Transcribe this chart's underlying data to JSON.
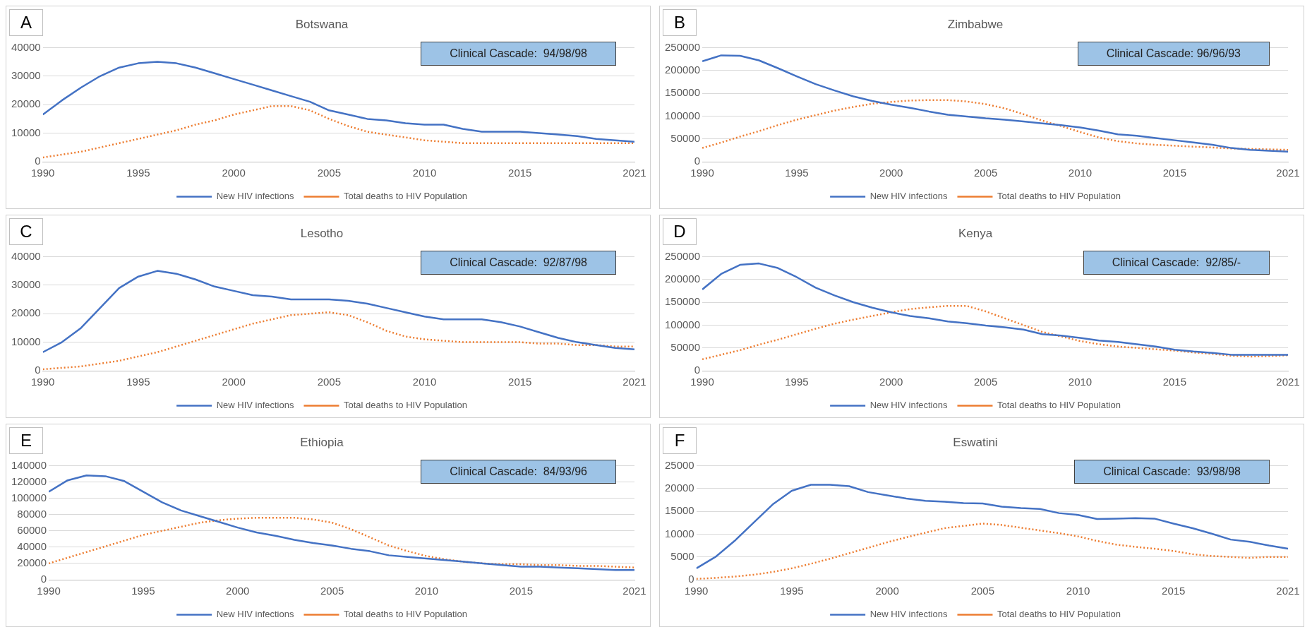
{
  "chart_data": [
    {
      "type": "line",
      "title": "Botswana",
      "annotations": [
        "A",
        "Clinical Cascade:  94/98/98"
      ],
      "x": [
        1990,
        1991,
        1992,
        1993,
        1994,
        1995,
        1996,
        1997,
        1998,
        1999,
        2000,
        2001,
        2002,
        2003,
        2004,
        2005,
        2006,
        2007,
        2008,
        2009,
        2010,
        2011,
        2012,
        2013,
        2014,
        2015,
        2016,
        2017,
        2018,
        2019,
        2020,
        2021
      ],
      "xlim": [
        1990,
        2021
      ],
      "xticks": [
        1990,
        1995,
        2000,
        2005,
        2010,
        2015,
        2021
      ],
      "ylim": [
        0,
        40000
      ],
      "yticks": [
        0,
        10000,
        20000,
        30000,
        40000
      ],
      "grid": "y",
      "legend": "bottom",
      "marker": "none",
      "series": [
        {
          "name": "New HIV infections",
          "color": "#4472c4",
          "line_style": "solid",
          "values": [
            16500,
            21500,
            26000,
            30000,
            33000,
            34500,
            35000,
            34500,
            33000,
            31000,
            29000,
            27000,
            25000,
            23000,
            21000,
            18000,
            16500,
            15000,
            14500,
            13500,
            13000,
            13000,
            11500,
            10500,
            10500,
            10500,
            10000,
            9500,
            9000,
            8000,
            7500,
            7000
          ]
        },
        {
          "name": "Total deaths to HIV Population",
          "color": "#ed7d31",
          "line_style": "dotted",
          "values": [
            1500,
            2500,
            3500,
            5000,
            6500,
            8000,
            9500,
            11000,
            13000,
            14500,
            16500,
            18000,
            19500,
            19500,
            18000,
            15000,
            12500,
            10500,
            9500,
            8500,
            7500,
            7000,
            6500,
            6500,
            6500,
            6500,
            6500,
            6500,
            6500,
            6500,
            6500,
            6500
          ]
        }
      ]
    },
    {
      "type": "line",
      "title": "Zimbabwe",
      "annotations": [
        "B",
        "Clinical Cascade: 96/96/93"
      ],
      "x": [
        1990,
        1991,
        1992,
        1993,
        1994,
        1995,
        1996,
        1997,
        1998,
        1999,
        2000,
        2001,
        2002,
        2003,
        2004,
        2005,
        2006,
        2007,
        2008,
        2009,
        2010,
        2011,
        2012,
        2013,
        2014,
        2015,
        2016,
        2017,
        2018,
        2019,
        2020,
        2021
      ],
      "xlim": [
        1990,
        2021
      ],
      "xticks": [
        1990,
        1995,
        2000,
        2005,
        2010,
        2015,
        2021
      ],
      "ylim": [
        0,
        250000
      ],
      "yticks": [
        0,
        50000,
        100000,
        150000,
        200000,
        250000
      ],
      "grid": "y",
      "legend": "bottom",
      "marker": "none",
      "series": [
        {
          "name": "New HIV infections",
          "color": "#4472c4",
          "line_style": "solid",
          "values": [
            220000,
            233000,
            232000,
            222000,
            205000,
            187000,
            170000,
            156000,
            143000,
            133000,
            125000,
            118000,
            110000,
            103000,
            99000,
            95000,
            92000,
            88000,
            84000,
            80000,
            75000,
            68000,
            60000,
            57000,
            52000,
            47000,
            42000,
            37000,
            30000,
            26000,
            24000,
            22000
          ]
        },
        {
          "name": "Total deaths to HIV Population",
          "color": "#ed7d31",
          "line_style": "dotted",
          "values": [
            30000,
            42000,
            55000,
            67000,
            80000,
            92000,
            102000,
            112000,
            120000,
            127000,
            131000,
            134000,
            135000,
            135000,
            132000,
            126000,
            117000,
            104000,
            90000,
            78000,
            65000,
            53000,
            45000,
            40000,
            37000,
            35000,
            33000,
            31000,
            29000,
            28000,
            27000,
            26000
          ]
        }
      ]
    },
    {
      "type": "line",
      "title": "Lesotho",
      "annotations": [
        "C",
        "Clinical Cascade:  92/87/98"
      ],
      "x": [
        1990,
        1991,
        1992,
        1993,
        1994,
        1995,
        1996,
        1997,
        1998,
        1999,
        2000,
        2001,
        2002,
        2003,
        2004,
        2005,
        2006,
        2007,
        2008,
        2009,
        2010,
        2011,
        2012,
        2013,
        2014,
        2015,
        2016,
        2017,
        2018,
        2019,
        2020,
        2021
      ],
      "xlim": [
        1990,
        2021
      ],
      "xticks": [
        1990,
        1995,
        2000,
        2005,
        2010,
        2015,
        2021
      ],
      "ylim": [
        0,
        40000
      ],
      "yticks": [
        0,
        10000,
        20000,
        30000,
        40000
      ],
      "grid": "y",
      "legend": "bottom",
      "marker": "none",
      "series": [
        {
          "name": "New HIV infections",
          "color": "#4472c4",
          "line_style": "solid",
          "values": [
            6500,
            10000,
            15000,
            22000,
            29000,
            33000,
            35000,
            34000,
            32000,
            29500,
            28000,
            26500,
            26000,
            25000,
            25000,
            25000,
            24500,
            23500,
            22000,
            20500,
            19000,
            18000,
            18000,
            18000,
            17000,
            15500,
            13500,
            11500,
            10000,
            9000,
            8000,
            7500
          ]
        },
        {
          "name": "Total deaths to HIV Population",
          "color": "#ed7d31",
          "line_style": "dotted",
          "values": [
            500,
            1000,
            1500,
            2500,
            3500,
            5000,
            6500,
            8500,
            10500,
            12500,
            14500,
            16500,
            18000,
            19500,
            20000,
            20500,
            19500,
            17000,
            14000,
            12000,
            11000,
            10500,
            10000,
            10000,
            10000,
            10000,
            9500,
            9500,
            9000,
            9000,
            8500,
            8500
          ]
        }
      ]
    },
    {
      "type": "line",
      "title": "Kenya",
      "annotations": [
        "D",
        "Clinical Cascade:  92/85/-"
      ],
      "x": [
        1990,
        1991,
        1992,
        1993,
        1994,
        1995,
        1996,
        1997,
        1998,
        1999,
        2000,
        2001,
        2002,
        2003,
        2004,
        2005,
        2006,
        2007,
        2008,
        2009,
        2010,
        2011,
        2012,
        2013,
        2014,
        2015,
        2016,
        2017,
        2018,
        2019,
        2020,
        2021
      ],
      "xlim": [
        1990,
        2021
      ],
      "xticks": [
        1990,
        1995,
        2000,
        2005,
        2010,
        2015,
        2021
      ],
      "ylim": [
        0,
        250000
      ],
      "yticks": [
        0,
        50000,
        100000,
        150000,
        200000,
        250000
      ],
      "grid": "y",
      "legend": "bottom",
      "marker": "none",
      "series": [
        {
          "name": "New HIV infections",
          "color": "#4472c4",
          "line_style": "solid",
          "values": [
            178000,
            212000,
            232000,
            235000,
            225000,
            205000,
            182000,
            165000,
            150000,
            138000,
            128000,
            120000,
            115000,
            108000,
            104000,
            99000,
            95000,
            90000,
            80000,
            77000,
            72000,
            66000,
            63000,
            58000,
            53000,
            46000,
            42000,
            39000,
            35000,
            35000,
            35000,
            35000
          ]
        },
        {
          "name": "Total deaths to HIV Population",
          "color": "#ed7d31",
          "line_style": "dotted",
          "values": [
            25000,
            35000,
            45000,
            57000,
            68000,
            80000,
            92000,
            103000,
            112000,
            120000,
            128000,
            135000,
            139000,
            142000,
            142000,
            130000,
            115000,
            100000,
            85000,
            75000,
            65000,
            58000,
            53000,
            50000,
            47000,
            44000,
            40000,
            37000,
            33000,
            31000,
            32000,
            34000
          ]
        }
      ]
    },
    {
      "type": "line",
      "title": "Ethiopia",
      "annotations": [
        "E",
        "Clinical Cascade:  84/93/96"
      ],
      "x": [
        1990,
        1991,
        1992,
        1993,
        1994,
        1995,
        1996,
        1997,
        1998,
        1999,
        2000,
        2001,
        2002,
        2003,
        2004,
        2005,
        2006,
        2007,
        2008,
        2009,
        2010,
        2011,
        2012,
        2013,
        2014,
        2015,
        2016,
        2017,
        2018,
        2019,
        2020,
        2021
      ],
      "xlim": [
        1990,
        2021
      ],
      "xticks": [
        1990,
        1995,
        2000,
        2005,
        2010,
        2015,
        2021
      ],
      "ylim": [
        0,
        140000
      ],
      "yticks": [
        0,
        20000,
        40000,
        60000,
        80000,
        100000,
        120000,
        140000
      ],
      "grid": "y",
      "legend": "bottom",
      "marker": "none",
      "series": [
        {
          "name": "New HIV infections",
          "color": "#4472c4",
          "line_style": "solid",
          "values": [
            108000,
            122000,
            128000,
            127000,
            121000,
            108000,
            95000,
            85000,
            78000,
            71000,
            64000,
            58000,
            54000,
            49000,
            45000,
            42000,
            38000,
            35000,
            30000,
            28000,
            26000,
            24000,
            22000,
            20000,
            18000,
            16000,
            16000,
            15000,
            14000,
            13000,
            12000,
            12000
          ]
        },
        {
          "name": "Total deaths to HIV Population",
          "color": "#ed7d31",
          "line_style": "dotted",
          "values": [
            20000,
            27000,
            34000,
            41000,
            48000,
            55000,
            60000,
            65000,
            70000,
            73000,
            75000,
            76000,
            76000,
            76000,
            74000,
            70000,
            62000,
            52000,
            42000,
            35000,
            29000,
            25000,
            22000,
            20000,
            19000,
            19000,
            18000,
            18000,
            17000,
            17000,
            16000,
            15000
          ]
        }
      ]
    },
    {
      "type": "line",
      "title": "Eswatini",
      "annotations": [
        "F",
        "Clinical Cascade:  93/98/98"
      ],
      "x": [
        1990,
        1991,
        1992,
        1993,
        1994,
        1995,
        1996,
        1997,
        1998,
        1999,
        2000,
        2001,
        2002,
        2003,
        2004,
        2005,
        2006,
        2007,
        2008,
        2009,
        2010,
        2011,
        2012,
        2013,
        2014,
        2015,
        2016,
        2017,
        2018,
        2019,
        2020,
        2021
      ],
      "xlim": [
        1990,
        2021
      ],
      "xticks": [
        1990,
        1995,
        2000,
        2005,
        2010,
        2015,
        2021
      ],
      "ylim": [
        0,
        25000
      ],
      "yticks": [
        0,
        5000,
        10000,
        15000,
        20000,
        25000
      ],
      "grid": "y",
      "legend": "bottom",
      "marker": "none",
      "series": [
        {
          "name": "New HIV infections",
          "color": "#4472c4",
          "line_style": "solid",
          "values": [
            2500,
            5000,
            8500,
            12500,
            16500,
            19500,
            20800,
            20800,
            20500,
            19200,
            18500,
            17800,
            17300,
            17100,
            16800,
            16700,
            16000,
            15700,
            15500,
            14600,
            14200,
            13300,
            13400,
            13500,
            13400,
            12300,
            11300,
            10100,
            8800,
            8300,
            7500,
            6800
          ]
        },
        {
          "name": "Total deaths to HIV Population",
          "color": "#ed7d31",
          "line_style": "dotted",
          "values": [
            200,
            400,
            700,
            1100,
            1700,
            2500,
            3500,
            4600,
            5800,
            7000,
            8200,
            9300,
            10300,
            11300,
            11800,
            12300,
            12000,
            11400,
            10800,
            10200,
            9500,
            8500,
            7700,
            7200,
            6800,
            6300,
            5600,
            5200,
            5000,
            4800,
            5000,
            5000
          ]
        }
      ]
    }
  ]
}
